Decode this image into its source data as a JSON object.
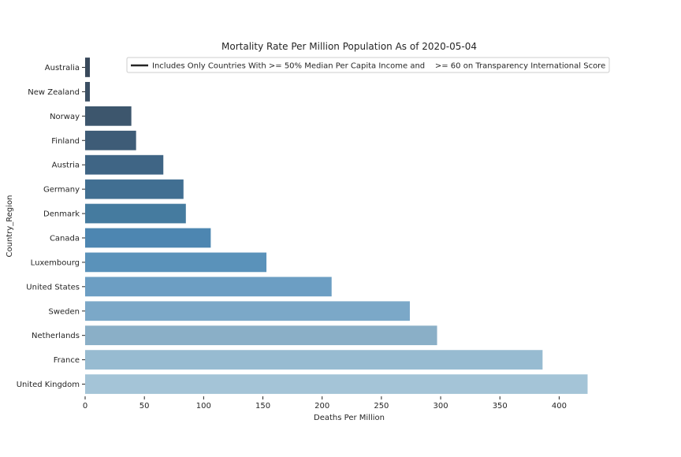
{
  "chart_data": {
    "type": "bar",
    "orientation": "horizontal",
    "title": "Mortality Rate Per Million Population As of 2020-05-04",
    "xlabel": "Deaths Per Million",
    "ylabel": "Country_Region",
    "xlim": [
      0,
      425
    ],
    "xticks": [
      0,
      50,
      100,
      150,
      200,
      250,
      300,
      350,
      400
    ],
    "grid": false,
    "legend": {
      "position": "top",
      "entries": [
        "Includes Only Countries With >= 50% Median Per Capita Income and    >= 60 on Transparency International Score"
      ]
    },
    "categories": [
      "Australia",
      "New Zealand",
      "Norway",
      "Finland",
      "Austria",
      "Germany",
      "Denmark",
      "Canada",
      "Luxembourg",
      "United States",
      "Sweden",
      "Netherlands",
      "France",
      "United Kingdom"
    ],
    "values": [
      4,
      4,
      39,
      43,
      66,
      83,
      85,
      106,
      153,
      208,
      274,
      297,
      386,
      424
    ],
    "colors": [
      "#39495b",
      "#3b4f63",
      "#3d566d",
      "#3e5c77",
      "#3f6585",
      "#416f92",
      "#457b9f",
      "#4d86b1",
      "#5a92ba",
      "#6c9ec3",
      "#7ba8c8",
      "#8aafc7",
      "#97bbd1",
      "#a4c4d7"
    ]
  }
}
